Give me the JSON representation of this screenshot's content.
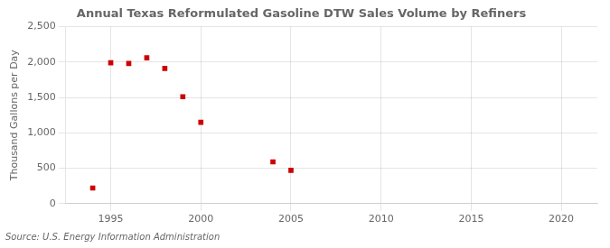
{
  "chart_data": {
    "type": "scatter",
    "title": "Annual Texas Reformulated Gasoline DTW Sales Volume by Refiners",
    "ylabel": "Thousand Gallons per Day",
    "annotations": [
      "Source: U.S. Energy Information Administration"
    ],
    "x": [
      1994,
      1995,
      1996,
      1997,
      1998,
      1999,
      2000,
      2004,
      2005
    ],
    "values": [
      220,
      1990,
      1980,
      2060,
      1910,
      1510,
      1150,
      590,
      470
    ],
    "color": "#cc0000",
    "marker": "square",
    "xlim": [
      1992.5,
      2022
    ],
    "xticks": [
      1995,
      2000,
      2005,
      2010,
      2015,
      2020
    ],
    "ylim": [
      0,
      2500
    ],
    "yticks": [
      0,
      500,
      {
        "value": 1000,
        "label": "1,000"
      },
      {
        "value": 1500,
        "label": "1,500"
      },
      {
        "value": 2000,
        "label": "2,000"
      },
      {
        "value": 2500,
        "label": "2,500"
      }
    ],
    "grid": true
  }
}
